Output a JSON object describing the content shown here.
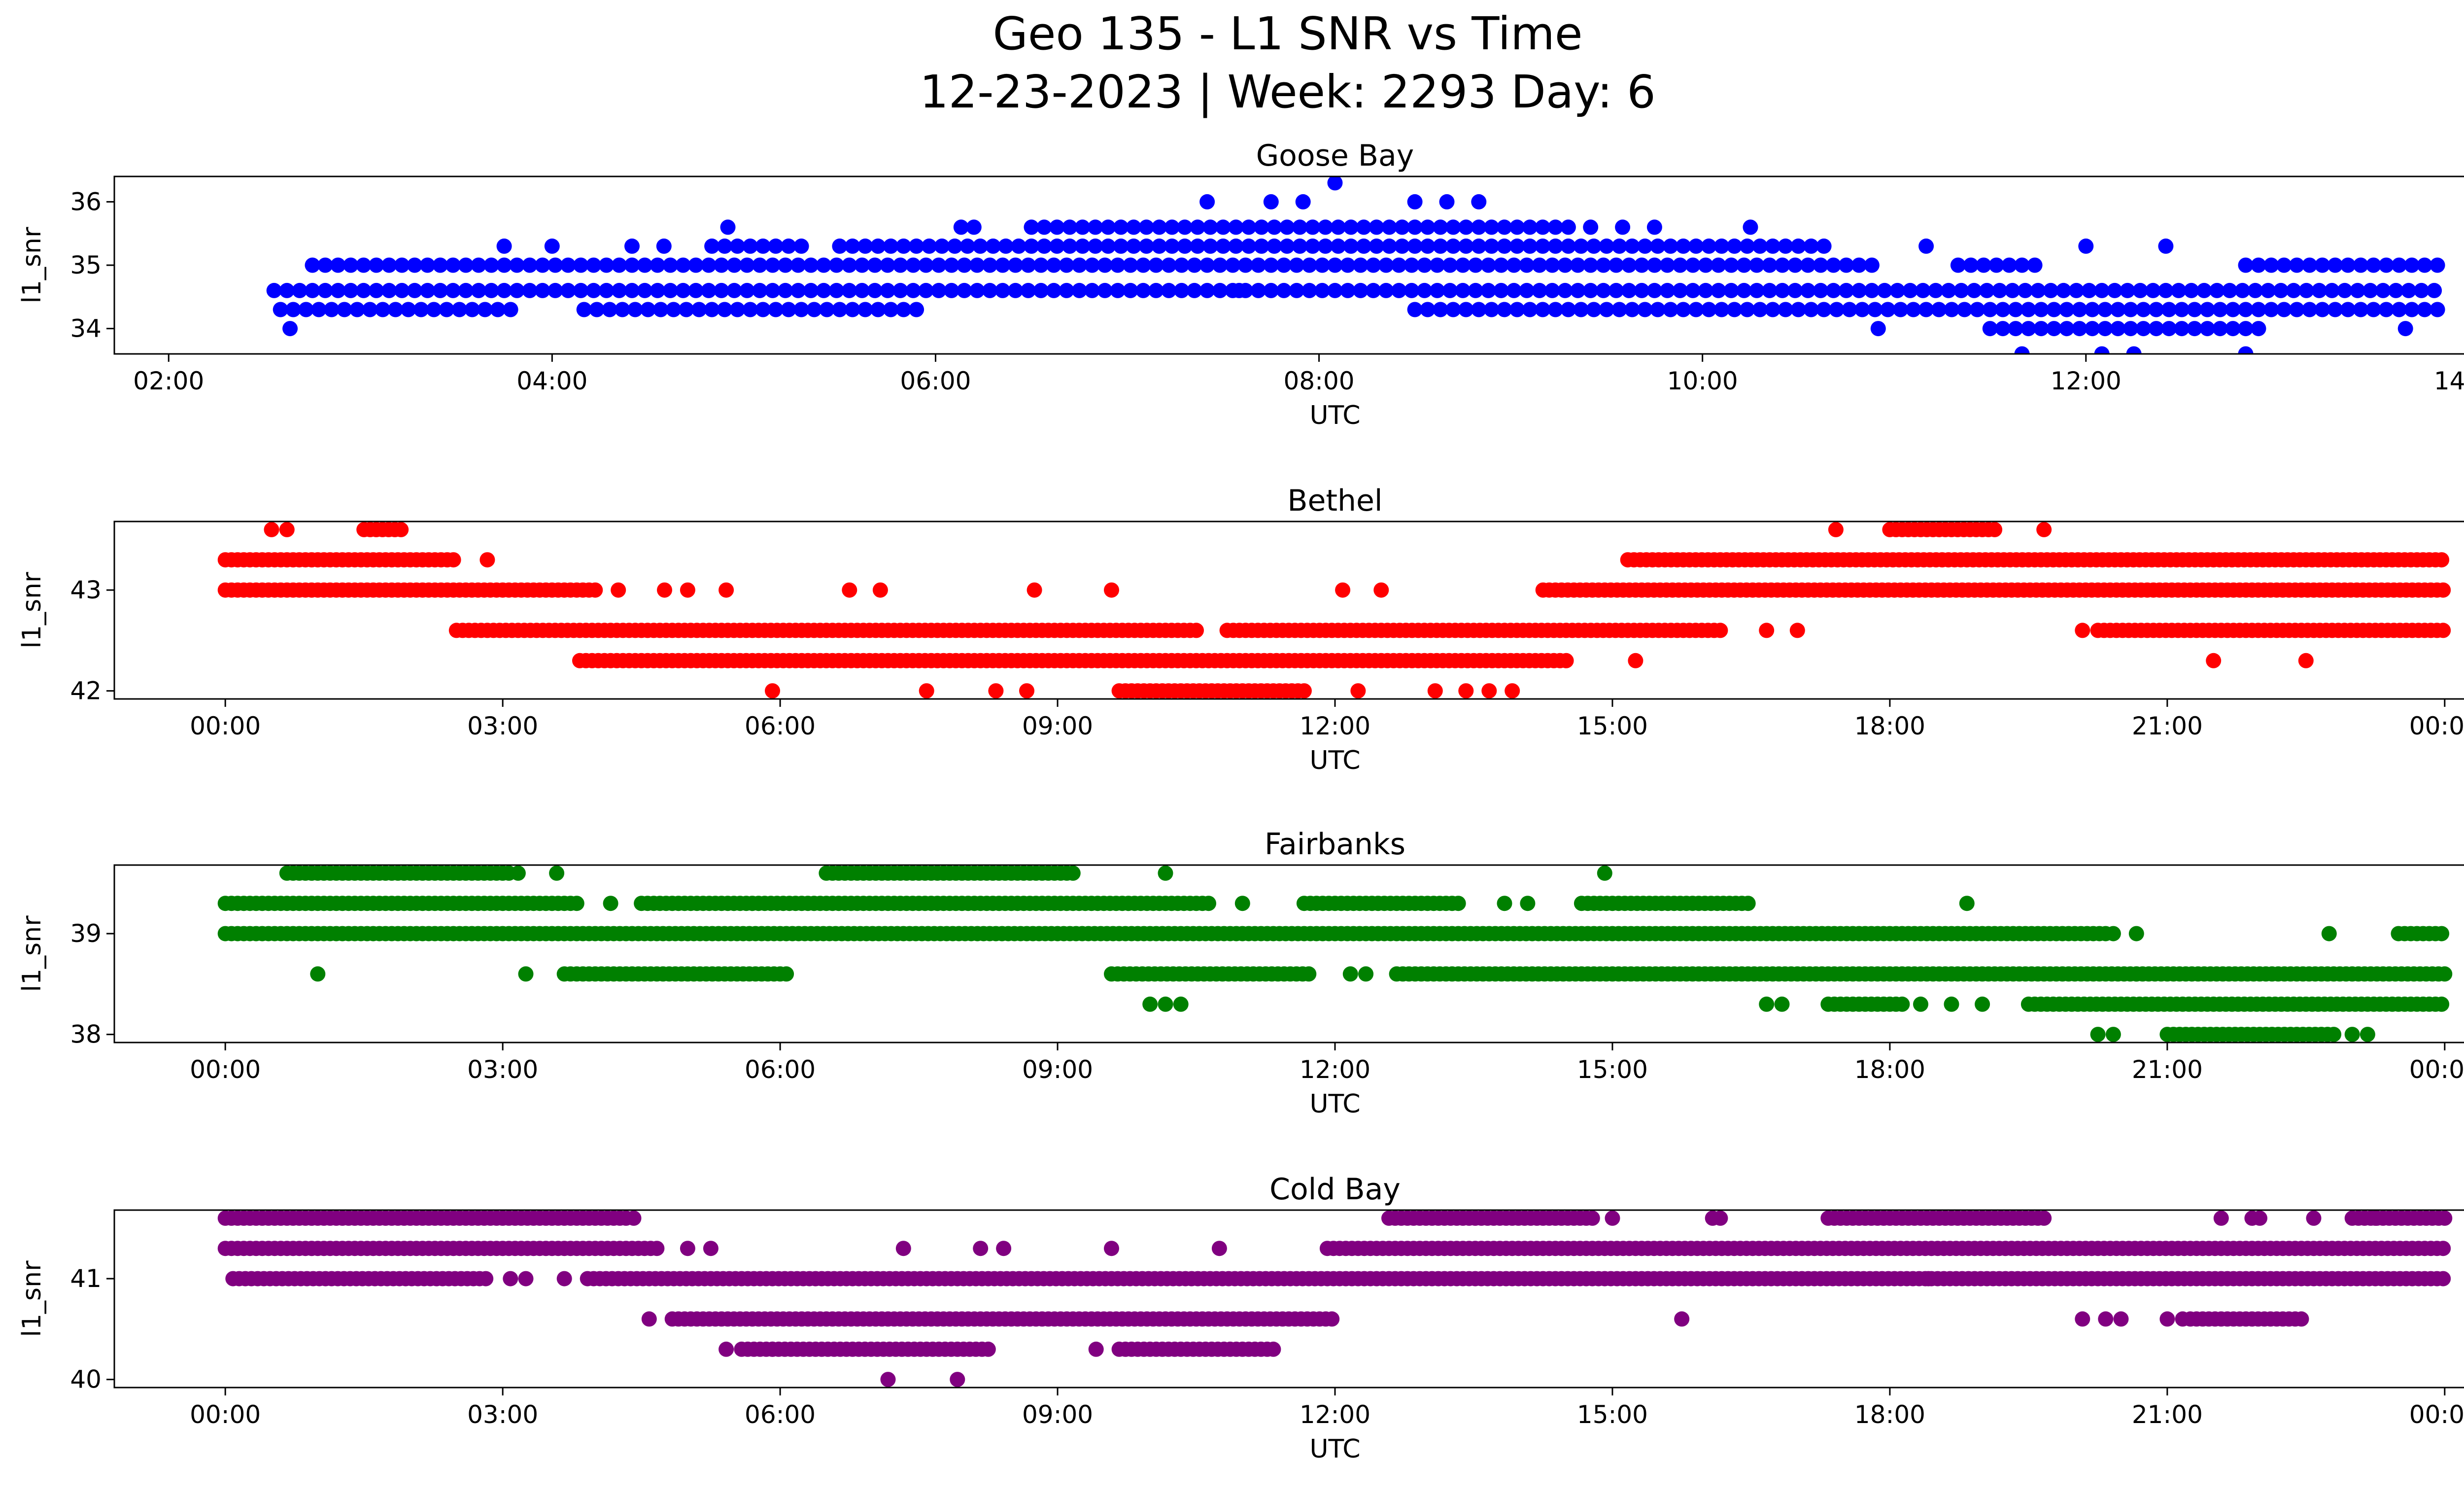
{
  "figure": {
    "title_line1": "Geo 135 - L1 SNR vs Time",
    "title_line2": "12-23-2023 | Week: 2293 Day: 6"
  },
  "chart_data": [
    {
      "type": "scatter",
      "title": "Goose Bay",
      "xlabel": "UTC",
      "ylabel": "l1_snr",
      "color": "#0000ff",
      "xlim": [
        "01:43",
        "14:27"
      ],
      "ylim": [
        33.6,
        36.4
      ],
      "xticks": [
        "02:00",
        "04:00",
        "06:00",
        "08:00",
        "10:00",
        "12:00",
        "14:00"
      ],
      "yticks": [
        34,
        35,
        36
      ],
      "levels": [
        {
          "y": 34.3,
          "ranges": [
            [
              "02:35",
              "03:50"
            ],
            [
              "04:10",
              "05:55"
            ],
            [
              "08:30",
              "13:52"
            ]
          ]
        },
        {
          "y": 34.6,
          "ranges": [
            [
              "02:33",
              "13:52"
            ]
          ]
        },
        {
          "y": 35.0,
          "ranges": [
            [
              "02:45",
              "10:55"
            ],
            [
              "11:20",
              "11:45"
            ],
            [
              "12:50",
              "13:50"
            ]
          ]
        },
        {
          "y": 35.3,
          "ranges": [
            [
              "04:50",
              "05:20"
            ],
            [
              "05:30",
              "10:40"
            ]
          ]
        },
        {
          "y": 35.6,
          "ranges": [
            [
              "06:30",
              "09:20"
            ]
          ]
        },
        {
          "y": 34.0,
          "ranges": [
            [
              "11:30",
              "12:55"
            ]
          ]
        }
      ],
      "points": [
        [
          "02:38",
          34.0
        ],
        [
          "03:45",
          35.3
        ],
        [
          "04:00",
          35.3
        ],
        [
          "04:25",
          35.3
        ],
        [
          "04:35",
          35.3
        ],
        [
          "04:55",
          35.6
        ],
        [
          "06:08",
          35.6
        ],
        [
          "06:12",
          35.6
        ],
        [
          "07:25",
          36.0
        ],
        [
          "07:35",
          34.6
        ],
        [
          "07:45",
          36.0
        ],
        [
          "07:55",
          36.0
        ],
        [
          "08:05",
          36.3
        ],
        [
          "08:30",
          36.0
        ],
        [
          "08:40",
          36.0
        ],
        [
          "08:50",
          36.0
        ],
        [
          "09:25",
          35.6
        ],
        [
          "09:35",
          35.6
        ],
        [
          "09:45",
          35.6
        ],
        [
          "10:15",
          35.6
        ],
        [
          "10:55",
          34.0
        ],
        [
          "11:10",
          35.3
        ],
        [
          "11:40",
          33.6
        ],
        [
          "12:00",
          35.3
        ],
        [
          "12:05",
          33.6
        ],
        [
          "12:15",
          33.6
        ],
        [
          "12:25",
          35.3
        ],
        [
          "12:50",
          33.6
        ],
        [
          "13:40",
          34.0
        ]
      ]
    },
    {
      "type": "scatter",
      "title": "Bethel",
      "xlabel": "UTC",
      "ylabel": "l1_snr",
      "color": "#ff0000",
      "xlim": [
        "-01:12",
        "25:12"
      ],
      "ylim": [
        41.92,
        43.68
      ],
      "xticks": [
        "00:00",
        "03:00",
        "06:00",
        "09:00",
        "12:00",
        "15:00",
        "18:00",
        "21:00",
        "00:00"
      ],
      "yticks": [
        42,
        43
      ],
      "levels": [
        {
          "y": 43.3,
          "ranges": [
            [
              "00:00",
              "02:30"
            ],
            [
              "15:10",
              "24:00"
            ]
          ]
        },
        {
          "y": 43.0,
          "ranges": [
            [
              "00:00",
              "04:00"
            ],
            [
              "14:15",
              "24:00"
            ]
          ]
        },
        {
          "y": 42.6,
          "ranges": [
            [
              "02:30",
              "10:30"
            ],
            [
              "10:50",
              "16:10"
            ],
            [
              "20:15",
              "24:00"
            ]
          ]
        },
        {
          "y": 42.3,
          "ranges": [
            [
              "03:50",
              "14:30"
            ]
          ]
        },
        {
          "y": 43.6,
          "ranges": [
            [
              "01:30",
              "01:55"
            ],
            [
              "18:00",
              "19:10"
            ]
          ]
        },
        {
          "y": 42.0,
          "ranges": [
            [
              "09:40",
              "11:40"
            ]
          ]
        }
      ],
      "points": [
        [
          "00:30",
          43.6
        ],
        [
          "00:40",
          43.6
        ],
        [
          "02:50",
          43.3
        ],
        [
          "04:15",
          43.0
        ],
        [
          "04:45",
          43.0
        ],
        [
          "05:00",
          43.0
        ],
        [
          "05:25",
          43.0
        ],
        [
          "05:55",
          42.0
        ],
        [
          "06:45",
          43.0
        ],
        [
          "07:05",
          43.0
        ],
        [
          "07:35",
          42.0
        ],
        [
          "08:20",
          42.0
        ],
        [
          "08:40",
          42.0
        ],
        [
          "08:45",
          43.0
        ],
        [
          "09:35",
          43.0
        ],
        [
          "12:05",
          43.0
        ],
        [
          "12:30",
          43.0
        ],
        [
          "12:15",
          42.0
        ],
        [
          "13:05",
          42.0
        ],
        [
          "13:25",
          42.0
        ],
        [
          "13:40",
          42.0
        ],
        [
          "13:55",
          42.0
        ],
        [
          "15:15",
          42.3
        ],
        [
          "16:40",
          42.6
        ],
        [
          "17:00",
          42.6
        ],
        [
          "17:25",
          43.6
        ],
        [
          "19:40",
          43.6
        ],
        [
          "21:30",
          42.3
        ],
        [
          "22:30",
          42.3
        ],
        [
          "20:05",
          42.6
        ]
      ]
    },
    {
      "type": "scatter",
      "title": "Fairbanks",
      "xlabel": "UTC",
      "ylabel": "l1_snr",
      "color": "#008000",
      "xlim": [
        "-01:12",
        "25:12"
      ],
      "ylim": [
        37.92,
        39.68
      ],
      "xticks": [
        "00:00",
        "03:00",
        "06:00",
        "09:00",
        "12:00",
        "15:00",
        "18:00",
        "21:00",
        "00:00"
      ],
      "yticks": [
        38,
        39
      ],
      "levels": [
        {
          "y": 39.3,
          "ranges": [
            [
              "00:00",
              "03:50"
            ],
            [
              "04:30",
              "10:40"
            ],
            [
              "11:40",
              "13:20"
            ],
            [
              "14:40",
              "16:30"
            ]
          ]
        },
        {
          "y": 39.0,
          "ranges": [
            [
              "00:00",
              "20:20"
            ],
            [
              "23:30",
              "24:00"
            ]
          ]
        },
        {
          "y": 38.6,
          "ranges": [
            [
              "03:40",
              "06:05"
            ],
            [
              "09:35",
              "11:45"
            ],
            [
              "12:40",
              "24:00"
            ]
          ]
        },
        {
          "y": 38.3,
          "ranges": [
            [
              "17:20",
              "18:10"
            ],
            [
              "19:30",
              "24:00"
            ]
          ]
        },
        {
          "y": 39.6,
          "ranges": [
            [
              "00:40",
              "03:05"
            ],
            [
              "06:30",
              "09:10"
            ]
          ]
        },
        {
          "y": 38.0,
          "ranges": [
            [
              "21:00",
              "22:50"
            ]
          ]
        }
      ],
      "points": [
        [
          "01:00",
          38.6
        ],
        [
          "03:10",
          39.6
        ],
        [
          "03:15",
          38.6
        ],
        [
          "03:35",
          39.6
        ],
        [
          "04:10",
          39.3
        ],
        [
          "10:10",
          39.6
        ],
        [
          "10:00",
          38.3
        ],
        [
          "10:10",
          38.3
        ],
        [
          "10:20",
          38.3
        ],
        [
          "11:00",
          39.3
        ],
        [
          "12:10",
          38.6
        ],
        [
          "12:20",
          38.6
        ],
        [
          "13:50",
          39.3
        ],
        [
          "14:05",
          39.3
        ],
        [
          "14:55",
          39.6
        ],
        [
          "16:40",
          38.3
        ],
        [
          "16:50",
          38.3
        ],
        [
          "18:20",
          38.3
        ],
        [
          "18:40",
          38.3
        ],
        [
          "18:50",
          39.3
        ],
        [
          "19:00",
          38.3
        ],
        [
          "20:15",
          38.0
        ],
        [
          "20:25",
          38.0
        ],
        [
          "20:40",
          38.6
        ],
        [
          "20:40",
          39.0
        ],
        [
          "20:25",
          39.0
        ],
        [
          "22:45",
          39.0
        ],
        [
          "23:00",
          38.0
        ],
        [
          "23:10",
          38.0
        ]
      ]
    },
    {
      "type": "scatter",
      "title": "Cold Bay",
      "xlabel": "UTC",
      "ylabel": "l1_snr",
      "color": "#800080",
      "xlim": [
        "-01:12",
        "25:12"
      ],
      "ylim": [
        39.92,
        41.68
      ],
      "xticks": [
        "00:00",
        "03:00",
        "06:00",
        "09:00",
        "12:00",
        "15:00",
        "18:00",
        "21:00",
        "00:00"
      ],
      "yticks": [
        40,
        41
      ],
      "levels": [
        {
          "y": 41.6,
          "ranges": [
            [
              "00:00",
              "04:20"
            ],
            [
              "12:35",
              "14:50"
            ],
            [
              "17:20",
              "19:40"
            ],
            [
              "23:00",
              "24:00"
            ]
          ]
        },
        {
          "y": 41.3,
          "ranges": [
            [
              "00:00",
              "04:40"
            ],
            [
              "11:55",
              "24:00"
            ]
          ]
        },
        {
          "y": 41.0,
          "ranges": [
            [
              "00:05",
              "02:50"
            ],
            [
              "03:55",
              "24:00"
            ]
          ]
        },
        {
          "y": 40.6,
          "ranges": [
            [
              "04:50",
              "12:00"
            ],
            [
              "21:15",
              "22:30"
            ]
          ]
        },
        {
          "y": 40.3,
          "ranges": [
            [
              "05:35",
              "08:15"
            ],
            [
              "09:40",
              "11:20"
            ]
          ]
        }
      ],
      "points": [
        [
          "03:05",
          41.0
        ],
        [
          "03:15",
          41.0
        ],
        [
          "03:40",
          41.0
        ],
        [
          "04:25",
          41.6
        ],
        [
          "04:35",
          40.6
        ],
        [
          "05:00",
          41.3
        ],
        [
          "05:15",
          41.3
        ],
        [
          "05:25",
          40.3
        ],
        [
          "05:55",
          40.3
        ],
        [
          "07:10",
          40.0
        ],
        [
          "07:20",
          41.3
        ],
        [
          "07:55",
          40.0
        ],
        [
          "08:10",
          41.3
        ],
        [
          "08:25",
          41.3
        ],
        [
          "09:25",
          40.3
        ],
        [
          "09:35",
          41.3
        ],
        [
          "10:45",
          41.3
        ],
        [
          "15:00",
          41.6
        ],
        [
          "15:45",
          40.6
        ],
        [
          "16:05",
          41.6
        ],
        [
          "16:10",
          41.6
        ],
        [
          "18:25",
          41.0
        ],
        [
          "20:05",
          40.6
        ],
        [
          "20:20",
          40.6
        ],
        [
          "20:30",
          40.6
        ],
        [
          "21:00",
          40.6
        ],
        [
          "21:10",
          40.6
        ],
        [
          "21:35",
          41.6
        ],
        [
          "21:55",
          41.6
        ],
        [
          "22:00",
          41.6
        ],
        [
          "22:35",
          41.6
        ],
        [
          "23:15",
          41.6
        ]
      ]
    }
  ]
}
